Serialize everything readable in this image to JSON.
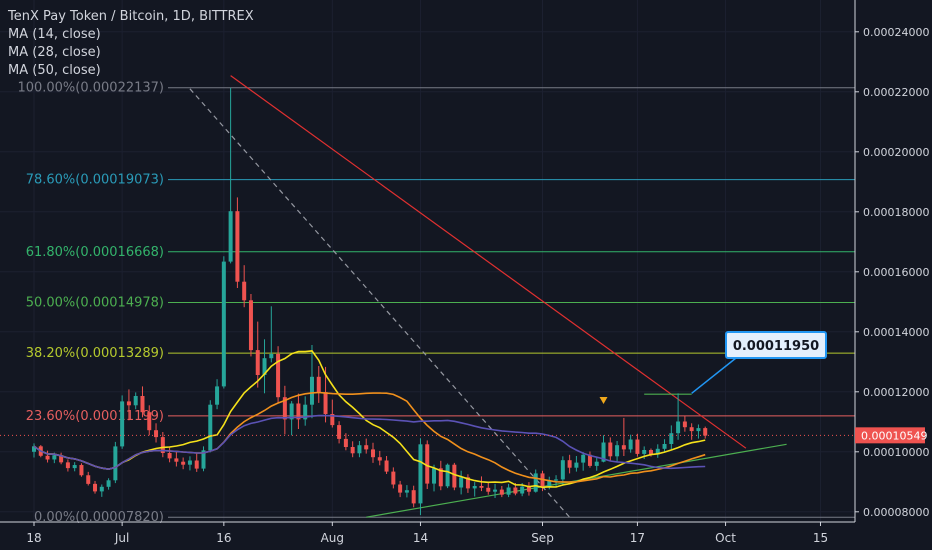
{
  "header": {
    "title": "TenX Pay Token / Bitcoin, 1D, BITTREX",
    "indicators": [
      "MA (14, close)",
      "MA (28, close)",
      "MA (50, close)"
    ]
  },
  "chart_data": {
    "type": "candlestick",
    "symbol": "TenX Pay Token / Bitcoin",
    "interval": "1D",
    "exchange": "BITTREX",
    "ylim": [
      7.66e-05,
      0.0002506
    ],
    "y_ticks": [
      "0.00024000",
      "0.00022000",
      "0.00020000",
      "0.00018000",
      "0.00016000",
      "0.00014000",
      "0.00012000",
      "0.00010000",
      "0.00008000"
    ],
    "x_ticks": [
      {
        "label": "18",
        "day": 0
      },
      {
        "label": "Jul",
        "day": 13
      },
      {
        "label": "16",
        "day": 28
      },
      {
        "label": "Aug",
        "day": 44
      },
      {
        "label": "14",
        "day": 57
      },
      {
        "label": "Sep",
        "day": 75
      },
      {
        "label": "Sep 17",
        "day": 89,
        "display": "17"
      },
      {
        "label": "Oct",
        "day": 102
      },
      {
        "label": "15",
        "day": 116
      }
    ],
    "fibonacci": [
      {
        "label": "100.00%(0.00022137)",
        "price": 0.00022137,
        "color": "#787b86"
      },
      {
        "label": "78.60%(0.00019073)",
        "price": 0.00019073,
        "color": "#2a9bb8"
      },
      {
        "label": "61.80%(0.00016668)",
        "price": 0.00016668,
        "color": "#33b36b"
      },
      {
        "label": "50.00%(0.00014978)",
        "price": 0.00014978,
        "color": "#4caf50"
      },
      {
        "label": "38.20%(0.00013289)",
        "price": 0.00013289,
        "color": "#b5c92e"
      },
      {
        "label": "23.60%(0.00011199)",
        "price": 0.00011199,
        "color": "#e65f5f"
      },
      {
        "label": "0.00%(0.00007820)",
        "price": 7.82e-05,
        "color": "#787b86"
      }
    ],
    "last_price": "0.00010549",
    "last_price_value": 0.00010549,
    "callout": {
      "label": "0.00011950",
      "price": 0.0001195
    },
    "candles": [
      [
        0.0001,
        0.00010281,
        9.81e-05,
        0.00010183
      ],
      [
        0.00010183,
        0.00010225,
        9.818e-05,
        9.867e-05
      ],
      [
        9.867e-05,
        0.00010038,
        9.643e-05,
        9.744e-05
      ],
      [
        9.744e-05,
        9.973e-05,
        9.622e-05,
        9.886e-05
      ],
      [
        9.886e-05,
        9.971e-05,
        9.585e-05,
        9.648e-05
      ],
      [
        9.648e-05,
        9.745e-05,
        9.343e-05,
        9.456e-05
      ],
      [
        9.456e-05,
        9.655e-05,
        9.35e-05,
        9.559e-05
      ],
      [
        9.559e-05,
        9.617e-05,
        9.169e-05,
        9.218e-05
      ],
      [
        9.218e-05,
        9.331e-05,
        8.877e-05,
        8.931e-05
      ],
      [
        8.931e-05,
        9.028e-05,
        8.606e-05,
        8.68e-05
      ],
      [
        8.68e-05,
        8.911e-05,
        8.498e-05,
        8.833e-05
      ],
      [
        8.833e-05,
        9.118e-05,
        8.739e-05,
        9.05e-05
      ],
      [
        9.05e-05,
        0.0001033,
        8.957e-05,
        0.0001018
      ],
      [
        0.0001018,
        0.0001188,
        0.000101,
        0.0001168
      ],
      [
        0.0001168,
        0.0001208,
        0.0001105,
        0.0001155
      ],
      [
        0.0001155,
        0.0001198,
        0.0001142,
        0.0001186
      ],
      [
        0.0001186,
        0.0001218,
        0.0001115,
        0.0001132
      ],
      [
        0.0001132,
        0.0001155,
        0.0001055,
        0.0001072
      ],
      [
        0.0001072,
        0.0001095,
        0.0001031,
        0.0001049
      ],
      [
        0.0001049,
        0.0001066,
        9.82e-05,
        9.96e-05
      ],
      [
        9.96e-05,
        0.0001014,
        9.65e-05,
        9.78e-05
      ],
      [
        9.78e-05,
        0.0001001,
        9.51e-05,
        9.67e-05
      ],
      [
        9.67e-05,
        9.81e-05,
        9.42e-05,
        9.57e-05
      ],
      [
        9.57e-05,
        9.85e-05,
        9.38e-05,
        9.71e-05
      ],
      [
        9.71e-05,
        9.94e-05,
        9.33e-05,
        9.44e-05
      ],
      [
        9.44e-05,
        0.0001018,
        9.35e-05,
        0.0001005
      ],
      [
        0.0001005,
        0.0001172,
        9.98e-05,
        0.0001157
      ],
      [
        0.0001157,
        0.0001242,
        0.0001142,
        0.0001218
      ],
      [
        0.0001218,
        0.0001652,
        0.0001211,
        0.0001634
      ],
      [
        0.0001634,
        0.0002213,
        0.0001628,
        0.0001802
      ],
      [
        0.0001802,
        0.0001848,
        0.0001546,
        0.0001567
      ],
      [
        0.0001567,
        0.0001622,
        0.0001482,
        0.0001505
      ],
      [
        0.0001505,
        0.0001526,
        0.0001318,
        0.0001339
      ],
      [
        0.0001339,
        0.0001434,
        0.0001214,
        0.0001256
      ],
      [
        0.0001256,
        0.0001375,
        0.0001195,
        0.0001312
      ],
      [
        0.0001312,
        0.0001485,
        0.0001298,
        0.0001326
      ],
      [
        0.0001326,
        0.0001352,
        0.0001164,
        0.0001182
      ],
      [
        0.0001182,
        0.000122,
        0.0001058,
        0.0001108
      ],
      [
        0.0001108,
        0.0001169,
        0.0001055,
        0.0001161
      ],
      [
        0.0001161,
        0.0001194,
        0.0001076,
        0.0001108
      ],
      [
        0.0001108,
        0.0001185,
        0.0001087,
        0.0001157
      ],
      [
        0.0001157,
        0.0001356,
        0.0001112,
        0.000125
      ],
      [
        0.000125,
        0.0001286,
        0.0001163,
        0.0001199
      ],
      [
        0.0001199,
        0.0001283,
        0.0001098,
        0.0001126
      ],
      [
        0.0001126,
        0.0001174,
        0.0001081,
        0.0001089
      ],
      [
        0.0001089,
        0.0001102,
        0.0001028,
        0.0001043
      ],
      [
        0.0001043,
        0.0001062,
        0.0001005,
        0.0001016
      ],
      [
        0.0001016,
        0.0001035,
        9.82e-05,
        9.95e-05
      ],
      [
        9.95e-05,
        0.0001036,
        9.82e-05,
        0.0001022
      ],
      [
        0.0001022,
        0.0001044,
        9.94e-05,
        0.0001008
      ],
      [
        0.0001008,
        0.000103,
        9.63e-05,
        9.82e-05
      ],
      [
        9.82e-05,
        0.0001003,
        9.55e-05,
        9.71e-05
      ],
      [
        9.71e-05,
        9.86e-05,
        9.26e-05,
        9.34e-05
      ],
      [
        9.34e-05,
        9.48e-05,
        8.78e-05,
        8.91e-05
      ],
      [
        8.91e-05,
        9.03e-05,
        8.49e-05,
        8.64e-05
      ],
      [
        8.64e-05,
        8.89e-05,
        8.48e-05,
        8.72e-05
      ],
      [
        8.72e-05,
        8.87e-05,
        8.15e-05,
        8.28e-05
      ],
      [
        8.28e-05,
        0.0001045,
        7.89e-05,
        0.0001025
      ],
      [
        0.0001025,
        0.0001038,
        8.76e-05,
        8.94e-05
      ],
      [
        8.94e-05,
        9.57e-05,
        8.68e-05,
        9.45e-05
      ],
      [
        9.45e-05,
        9.7e-05,
        8.72e-05,
        8.85e-05
      ],
      [
        8.85e-05,
        9.61e-05,
        8.79e-05,
        9.57e-05
      ],
      [
        9.57e-05,
        9.63e-05,
        8.72e-05,
        8.81e-05
      ],
      [
        8.81e-05,
        9.37e-05,
        8.58e-05,
        9.15e-05
      ],
      [
        9.15e-05,
        9.25e-05,
        8.63e-05,
        8.78e-05
      ],
      [
        8.78e-05,
        8.99e-05,
        8.51e-05,
        8.86e-05
      ],
      [
        8.86e-05,
        9.18e-05,
        8.69e-05,
        8.8e-05
      ],
      [
        8.8e-05,
        8.96e-05,
        8.57e-05,
        8.67e-05
      ],
      [
        8.67e-05,
        8.93e-05,
        8.46e-05,
        8.74e-05
      ],
      [
        8.74e-05,
        8.86e-05,
        8.49e-05,
        8.57e-05
      ],
      [
        8.57e-05,
        8.93e-05,
        8.49e-05,
        8.81e-05
      ],
      [
        8.81e-05,
        8.96e-05,
        8.55e-05,
        8.61e-05
      ],
      [
        8.61e-05,
        8.96e-05,
        8.52e-05,
        8.84e-05
      ],
      [
        8.84e-05,
        8.99e-05,
        8.54e-05,
        8.67e-05
      ],
      [
        8.67e-05,
        9.41e-05,
        8.64e-05,
        9.28e-05
      ],
      [
        9.28e-05,
        9.37e-05,
        8.69e-05,
        8.83e-05
      ],
      [
        8.83e-05,
        9.17e-05,
        8.75e-05,
        9.04e-05
      ],
      [
        9.04e-05,
        9.22e-05,
        8.83e-05,
        9.08e-05
      ],
      [
        9.08e-05,
        9.85e-05,
        8.89e-05,
        9.72e-05
      ],
      [
        9.72e-05,
        9.9e-05,
        9.28e-05,
        9.47e-05
      ],
      [
        9.47e-05,
        9.86e-05,
        9.34e-05,
        9.64e-05
      ],
      [
        9.64e-05,
        9.99e-05,
        9.37e-05,
        9.9e-05
      ],
      [
        9.9e-05,
        0.0001001,
        9.47e-05,
        9.53e-05
      ],
      [
        9.53e-05,
        9.81e-05,
        9.37e-05,
        9.67e-05
      ],
      [
        9.67e-05,
        0.0001055,
        9.65e-05,
        0.0001031
      ],
      [
        0.0001031,
        0.0001048,
        9.68e-05,
        9.85e-05
      ],
      [
        9.85e-05,
        0.0001036,
        9.67e-05,
        0.0001022
      ],
      [
        0.0001022,
        0.0001113,
        9.86e-05,
        0.0001008
      ],
      [
        0.0001008,
        0.0001057,
        9.97e-05,
        0.0001041
      ],
      [
        0.0001041,
        0.000106,
        9.84e-05,
        9.93e-05
      ],
      [
        9.93e-05,
        0.0001018,
        9.76e-05,
        0.0001006
      ],
      [
        0.0001006,
        0.0001011,
        9.84e-05,
        9.91e-05
      ],
      [
        9.91e-05,
        0.0001025,
        9.8e-05,
        0.000101
      ],
      [
        0.000101,
        0.0001042,
        9.98e-05,
        0.0001026
      ],
      [
        0.0001026,
        0.0001088,
        0.0001009,
        0.0001062
      ],
      [
        0.0001062,
        0.0001195,
        0.000104,
        0.0001101
      ],
      [
        0.0001101,
        0.000112,
        0.0001067,
        0.0001082
      ],
      [
        0.0001082,
        0.0001095,
        0.000104,
        0.0001069
      ],
      [
        0.0001069,
        0.0001091,
        0.0001044,
        0.0001079
      ],
      [
        0.0001079,
        0.0001084,
        0.0001044,
        0.0001054
      ]
    ],
    "moving_averages": [
      {
        "name": "MA (14, close)",
        "period": 14,
        "color": "#f5e11a"
      },
      {
        "name": "MA (28, close)",
        "period": 28,
        "color": "#f0901c"
      },
      {
        "name": "MA (50, close)",
        "period": 50,
        "color": "#5b52b5"
      }
    ],
    "lines": [
      {
        "name": "descending-resistance",
        "color": "#e03030",
        "from": {
          "day": 29,
          "price": 0.0002254
        },
        "to": {
          "day": 105,
          "price": 0.0001012
        }
      },
      {
        "name": "ascending-support",
        "color": "#4caf50",
        "from": {
          "day": 49,
          "price": 7.82e-05
        },
        "to": {
          "day": 111,
          "price": 0.0001025
        }
      },
      {
        "name": "fib-diagonal",
        "color": "#9598a1",
        "from": {
          "day": 23,
          "price": 0.000221
        },
        "to": {
          "day": 79,
          "price": 7.82e-05
        }
      },
      {
        "name": "horizontal-high",
        "color": "#4caf50",
        "from": {
          "day": 90,
          "price": 0.0001192
        },
        "to": {
          "day": 97,
          "price": 0.0001192
        }
      }
    ],
    "colors": {
      "background": "#131722",
      "up": "#26a69a",
      "down": "#ef5350",
      "axis_text": "#d1d4dc"
    },
    "grid": true,
    "legend": "top-left"
  }
}
